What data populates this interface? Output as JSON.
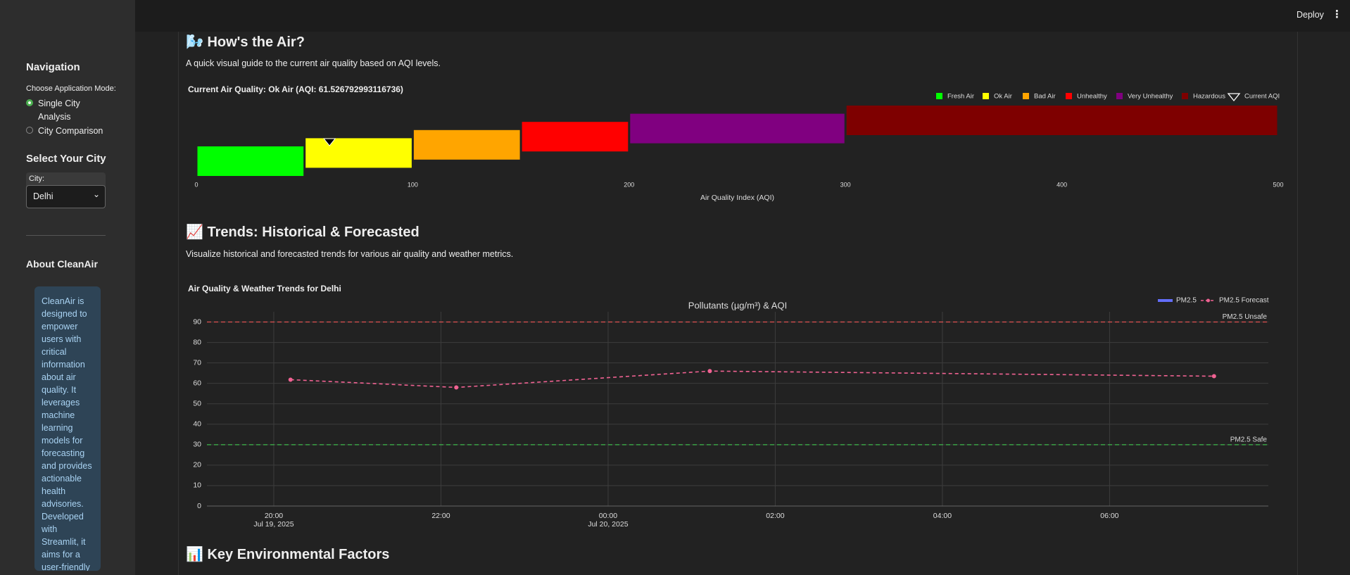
{
  "header": {
    "deploy": "Deploy"
  },
  "sidebar": {
    "navigation_title": "Navigation",
    "mode_label": "Choose Application Mode:",
    "mode_options": [
      "Single City Analysis",
      "City Comparison"
    ],
    "selected_mode": 0,
    "city_title": "Select Your City",
    "city_label": "City:",
    "city_value": "Delhi",
    "about_title": "About CleanAir",
    "about_text": "CleanAir is designed to empower users with critical information about air quality. It leverages machine learning models for forecasting and provides actionable health advisories. Developed with Streamlit, it aims for a user-friendly"
  },
  "sections": [
    {
      "title": "🌬️ How's the Air?",
      "description": "A quick visual guide to the current air quality based on AQI levels."
    },
    {
      "title": "📈 Trends: Historical & Forecasted",
      "description": "Visualize historical and forecasted trends for various air quality and weather metrics."
    },
    {
      "title": "📊 Key Environmental Factors"
    }
  ],
  "chart_data": [
    {
      "type": "range_bar",
      "title": "Current Air Quality: Ok Air (AQI: 61.526792993116736)",
      "categories": [
        "Fresh Air",
        "Ok Air",
        "Bad Air",
        "Unhealthy",
        "Very Unhealthy",
        "Hazardous"
      ],
      "starts": [
        0,
        50,
        100,
        150,
        200,
        300
      ],
      "ends": [
        50,
        100,
        150,
        200,
        300,
        500
      ],
      "colors": [
        "#00ff00",
        "#ffff00",
        "#ffa500",
        "#ff0000",
        "#800080",
        "#7e0000"
      ],
      "marker": {
        "name": "Current AQI",
        "value": 61.526792993116736
      },
      "xlabel": "Air Quality Index (AQI)",
      "xlim": [
        0,
        500
      ],
      "xticks": [
        0,
        100,
        200,
        300,
        400,
        500
      ],
      "legend": "top-right"
    },
    {
      "type": "line",
      "heading": "Air Quality & Weather Trends for Delhi",
      "title": "Pollutants (µg/m³) & AQI",
      "x": [
        "2025-07-19T20:12",
        "2025-07-19T22:11",
        "2025-07-20T01:13",
        "2025-07-20T07:15"
      ],
      "series": [
        {
          "name": "PM2.5",
          "color": "#636efa",
          "values": [
            null,
            null,
            null,
            null
          ]
        },
        {
          "name": "PM2.5 Forecast",
          "color": "#f06292",
          "values": [
            61.8,
            58.0,
            66.0,
            63.5
          ]
        }
      ],
      "hlines": [
        {
          "label": "PM2.5 Unsafe",
          "value": 90,
          "color": "#e05252"
        },
        {
          "label": "PM2.5 Safe",
          "value": 30,
          "color": "#3cb84a"
        }
      ],
      "xlim": [
        "2025-07-19T19:12",
        "2025-07-20T07:54"
      ],
      "xticks": [
        {
          "value": "2025-07-19T20:00",
          "label": "20:00\nJul 19, 2025"
        },
        {
          "value": "2025-07-19T22:00",
          "label": "22:00"
        },
        {
          "value": "2025-07-20T00:00",
          "label": "00:00\nJul 20, 2025"
        },
        {
          "value": "2025-07-20T02:00",
          "label": "02:00"
        },
        {
          "value": "2025-07-20T04:00",
          "label": "04:00"
        },
        {
          "value": "2025-07-20T06:00",
          "label": "06:00"
        }
      ],
      "ylim": [
        0,
        95
      ],
      "yticks": [
        0,
        10,
        20,
        30,
        40,
        50,
        60,
        70,
        80,
        90
      ],
      "grid": true,
      "legend": "top-right"
    }
  ]
}
